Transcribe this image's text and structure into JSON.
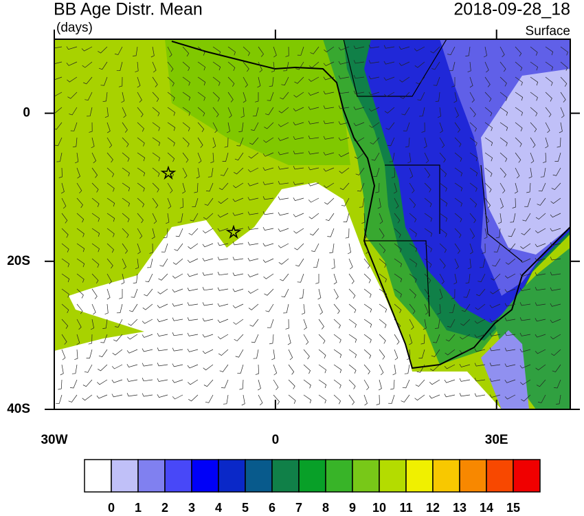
{
  "header": {
    "title": "BB Age Distr. Mean",
    "units": "(days)",
    "date": "2018-09-28_18",
    "level": "Surface"
  },
  "map": {
    "xlim": [
      -30,
      40
    ],
    "ylim": [
      -40,
      10
    ],
    "xticks": [
      {
        "value": -30,
        "label": "30W"
      },
      0,
      {
        "value": 30,
        "label": "30E"
      }
    ],
    "yticks": [
      0,
      {
        "value": -20,
        "label": "20S"
      },
      {
        "value": -40,
        "label": "40S"
      }
    ]
  },
  "colorbar": {
    "levels": [
      0,
      1,
      2,
      3,
      4,
      5,
      6,
      7,
      8,
      9,
      10,
      11,
      12,
      13,
      14,
      15
    ],
    "colors": [
      "#ffffff",
      "#c0c0f8",
      "#8080f0",
      "#4848f8",
      "#0000f8",
      "#0a28c8",
      "#085a8c",
      "#108048",
      "#08a028",
      "#38b428",
      "#78c818",
      "#b4dc00",
      "#f0f000",
      "#f8c800",
      "#f88800",
      "#f84800",
      "#f00000"
    ]
  }
}
